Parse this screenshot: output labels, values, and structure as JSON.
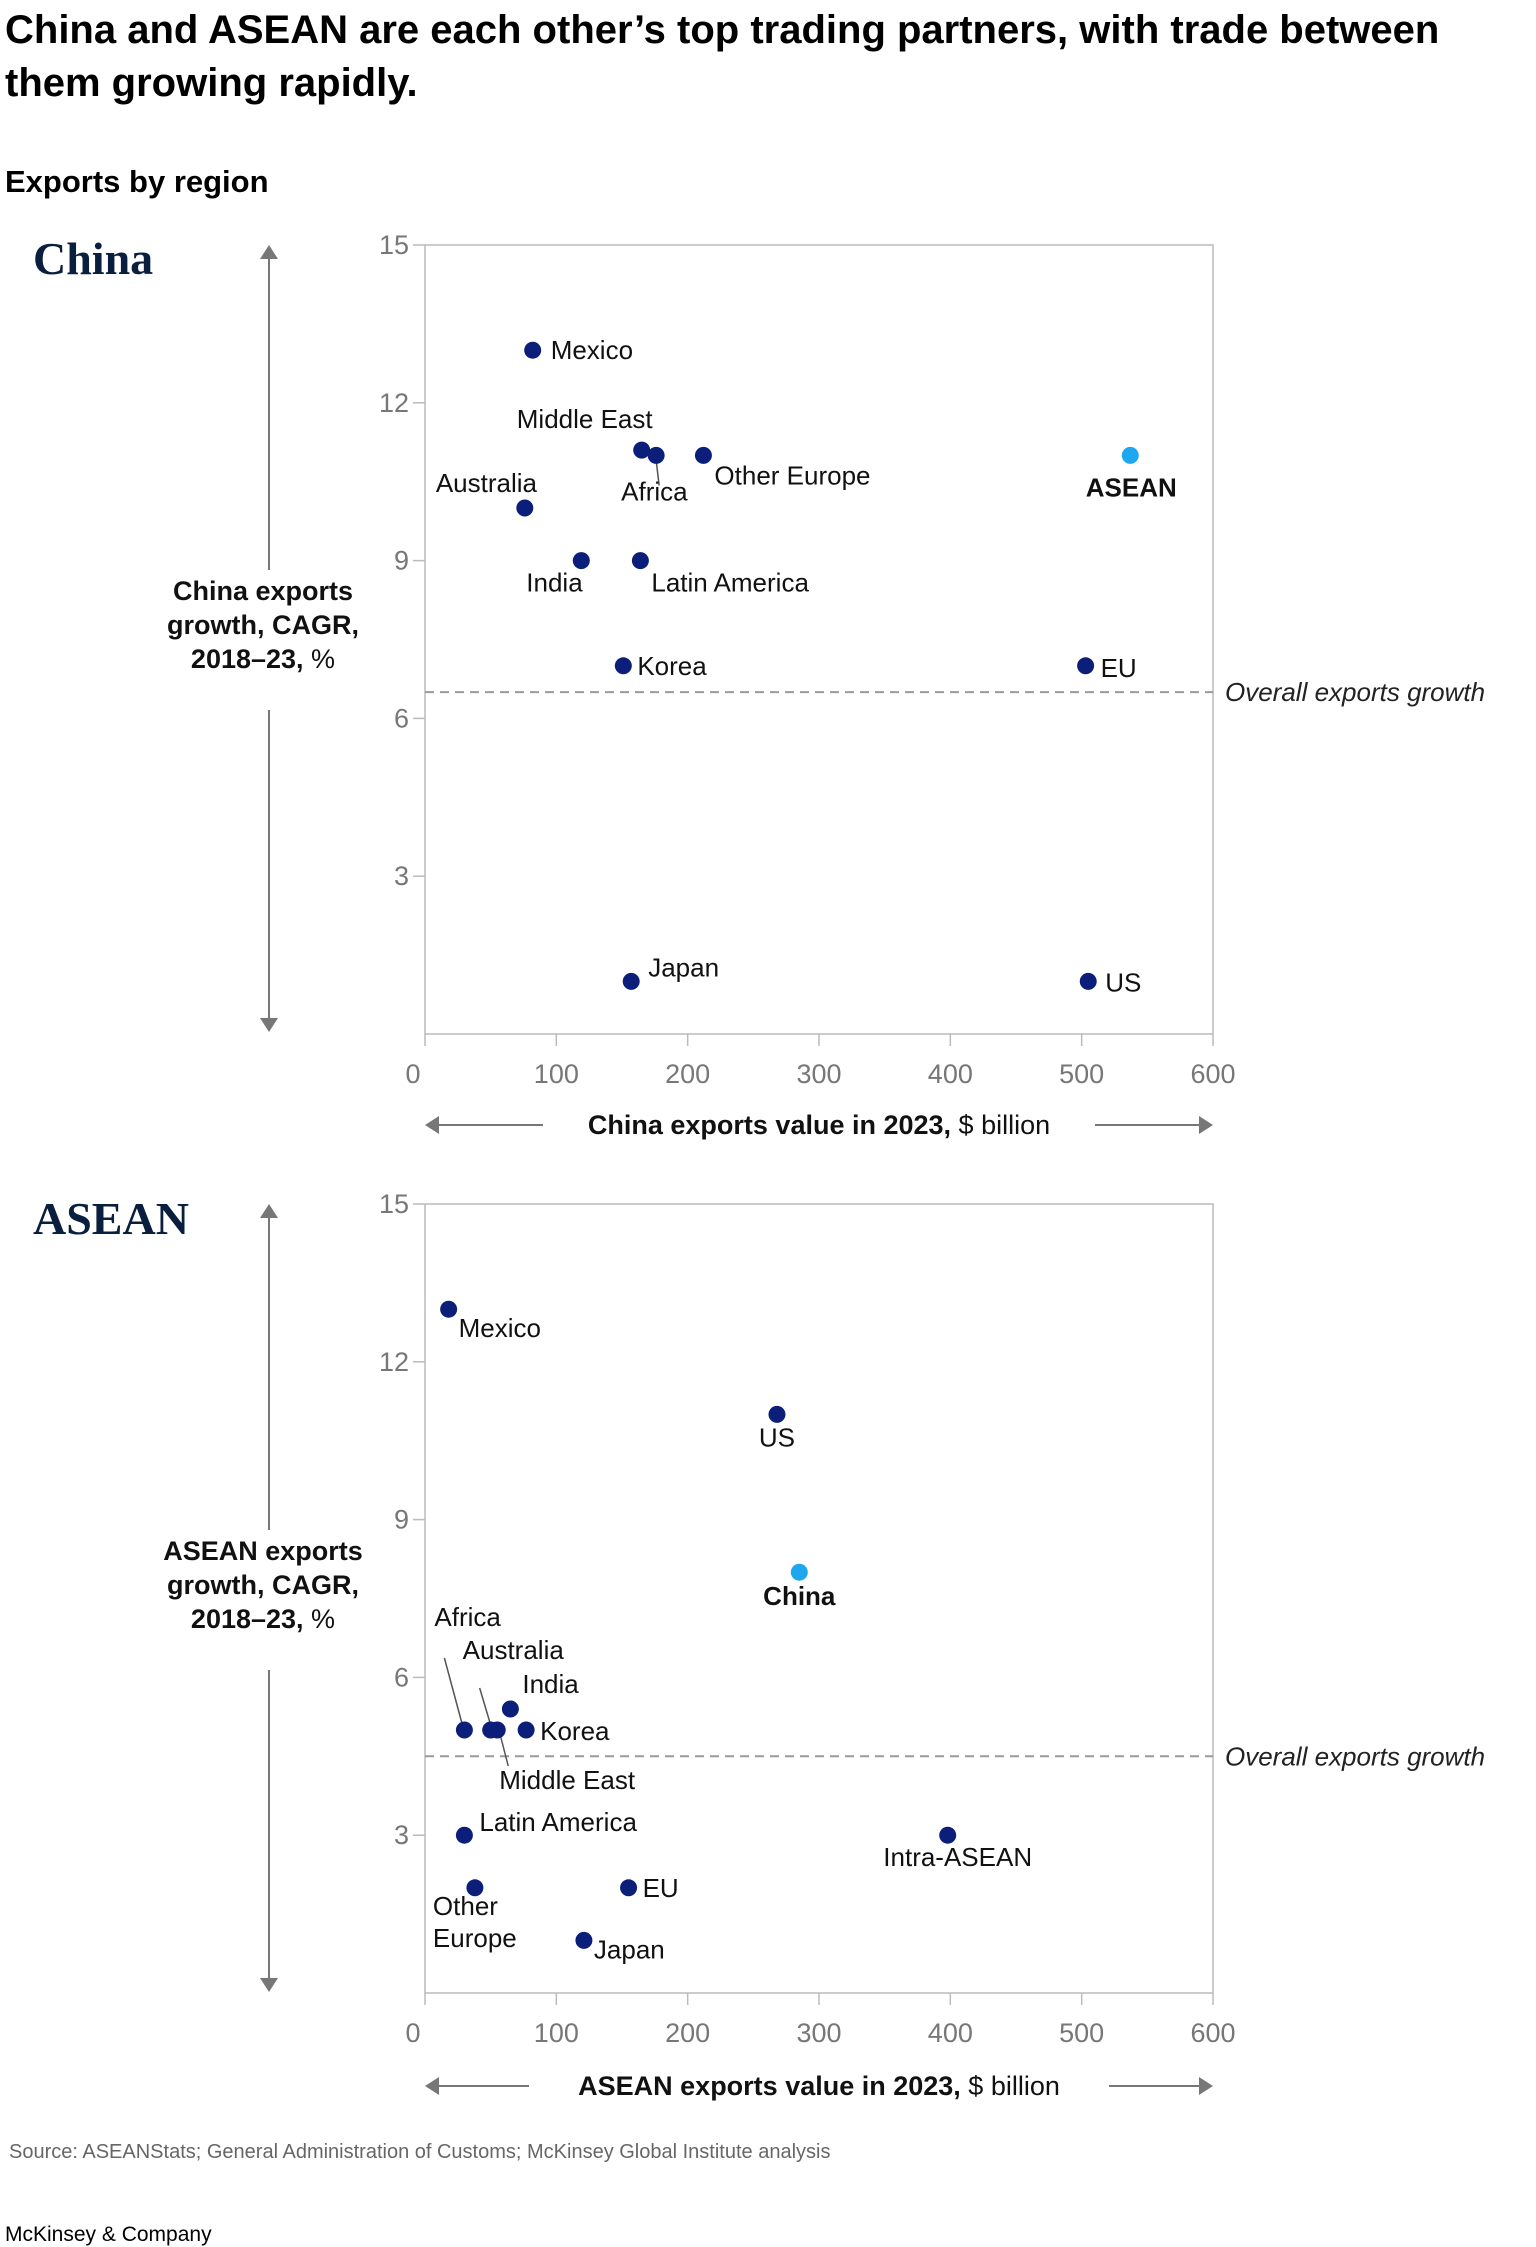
{
  "title": "China and ASEAN are each other’s top trading partners, with trade between them growing rapidly.",
  "subtitle": "Exports by region",
  "source": "Source: ASEANStats; General Administration of Customs; McKinsey Global Institute analysis",
  "brand": "McKinsey & Company",
  "colors": {
    "point": "#0b1f7a",
    "highlight": "#1ea7ee",
    "reference_line": "#9a9a9a",
    "axis": "#bbbbbb"
  },
  "chart_data": [
    {
      "type": "scatter",
      "panel_title": "China",
      "xlabel_bold": "China exports value in 2023,",
      "xlabel_unit": " $ billion",
      "ylabel_lines": [
        "China exports",
        "growth, CAGR,",
        "2018–23,"
      ],
      "ylabel_unit": " %",
      "xlim": [
        0,
        600
      ],
      "ylim": [
        0,
        15
      ],
      "xticks": [
        0,
        100,
        200,
        300,
        400,
        500,
        600
      ],
      "yticks": [
        3,
        6,
        9,
        12,
        15
      ],
      "reference_line": {
        "y": 6.5,
        "label": "Overall exports growth"
      },
      "points": [
        {
          "label": "Mexico",
          "x": 82,
          "y": 13
        },
        {
          "label": "Middle East",
          "x": 165,
          "y": 11.1
        },
        {
          "label": "Africa",
          "x": 176,
          "y": 11
        },
        {
          "label": "Other Europe",
          "x": 212,
          "y": 11
        },
        {
          "label": "Australia",
          "x": 76,
          "y": 10
        },
        {
          "label": "India",
          "x": 119,
          "y": 9
        },
        {
          "label": "Latin America",
          "x": 164,
          "y": 9
        },
        {
          "label": "Korea",
          "x": 151,
          "y": 7
        },
        {
          "label": "EU",
          "x": 503,
          "y": 7
        },
        {
          "label": "ASEAN",
          "x": 537,
          "y": 11,
          "highlight": true
        },
        {
          "label": "Japan",
          "x": 157,
          "y": 1
        },
        {
          "label": "US",
          "x": 505,
          "y": 1
        }
      ]
    },
    {
      "type": "scatter",
      "panel_title": "ASEAN",
      "xlabel_bold": "ASEAN exports value in 2023,",
      "xlabel_unit": " $ billion",
      "ylabel_lines": [
        "ASEAN exports",
        "growth, CAGR,",
        "2018–23,"
      ],
      "ylabel_unit": " %",
      "xlim": [
        0,
        600
      ],
      "ylim": [
        0,
        15
      ],
      "xticks": [
        0,
        100,
        200,
        300,
        400,
        500,
        600
      ],
      "yticks": [
        3,
        6,
        9,
        12,
        15
      ],
      "reference_line": {
        "y": 4.5,
        "label": "Overall exports growth"
      },
      "points": [
        {
          "label": "Mexico",
          "x": 18,
          "y": 13
        },
        {
          "label": "US",
          "x": 268,
          "y": 11
        },
        {
          "label": "China",
          "x": 285,
          "y": 8,
          "highlight": true
        },
        {
          "label": "Africa",
          "x": 30,
          "y": 5
        },
        {
          "label": "Australia",
          "x": 50,
          "y": 5
        },
        {
          "label": "Middle East",
          "x": 55,
          "y": 5
        },
        {
          "label": "India",
          "x": 65,
          "y": 5.4
        },
        {
          "label": "Korea",
          "x": 77,
          "y": 5
        },
        {
          "label": "Latin America",
          "x": 30,
          "y": 3
        },
        {
          "label": "Other Europe",
          "x": 38,
          "y": 2
        },
        {
          "label": "EU",
          "x": 155,
          "y": 2
        },
        {
          "label": "Japan",
          "x": 121,
          "y": 1
        },
        {
          "label": "Intra-ASEAN",
          "x": 398,
          "y": 3
        }
      ]
    }
  ]
}
